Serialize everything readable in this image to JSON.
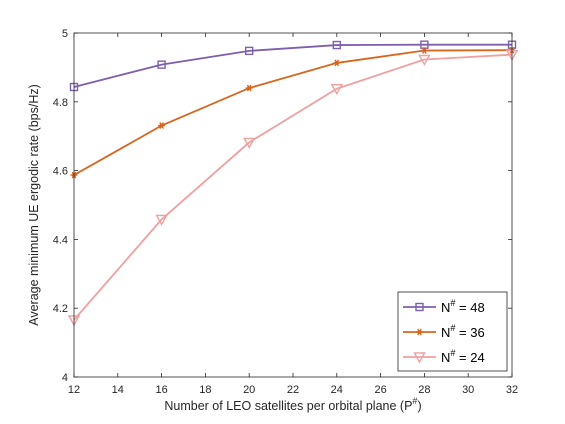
{
  "chart_data": {
    "type": "line",
    "xlabel": "Number of LEO satellites per orbital plane (P",
    "xlabel_sup": "#",
    "xlabel_end": ")",
    "ylabel": "Average minimum UE ergodic rate (bps/Hz)",
    "xlim": [
      12,
      32
    ],
    "ylim": [
      4,
      5
    ],
    "xticks": [
      12,
      14,
      16,
      18,
      20,
      22,
      24,
      26,
      28,
      30,
      32
    ],
    "yticks": [
      4,
      4.2,
      4.4,
      4.6,
      4.8,
      5
    ],
    "xtick_labels": [
      "12",
      "14",
      "16",
      "18",
      "20",
      "22",
      "24",
      "26",
      "28",
      "30",
      "32"
    ],
    "ytick_labels": [
      "4",
      "4.2",
      "4.4",
      "4.6",
      "4.8",
      "5"
    ],
    "x": [
      12,
      16,
      20,
      24,
      28,
      32
    ],
    "grid": false,
    "legend_position": "bottom-right",
    "series": [
      {
        "name": "N",
        "name_sup": "#",
        "name_suffix": " = 48",
        "values": [
          4.843,
          4.908,
          4.948,
          4.965,
          4.966,
          4.966
        ],
        "color": "#7e5fae",
        "marker": "square"
      },
      {
        "name": "N",
        "name_sup": "#",
        "name_suffix": " = 36",
        "values": [
          4.587,
          4.731,
          4.84,
          4.913,
          4.949,
          4.95
        ],
        "color": "#d9661f",
        "marker": "star"
      },
      {
        "name": "N",
        "name_sup": "#",
        "name_suffix": " = 24",
        "values": [
          4.166,
          4.458,
          4.682,
          4.838,
          4.923,
          4.937
        ],
        "color": "#f0a0a0",
        "marker": "triangle-down"
      }
    ]
  }
}
